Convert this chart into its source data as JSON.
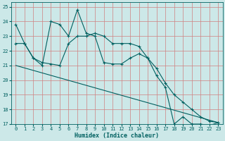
{
  "xlabel": "Humidex (Indice chaleur)",
  "background_color": "#cce8e8",
  "grid_color": "#d08080",
  "line_color": "#006060",
  "xlim": [
    -0.5,
    23.5
  ],
  "ylim": [
    17,
    25.3
  ],
  "yticks": [
    17,
    18,
    19,
    20,
    21,
    22,
    23,
    24,
    25
  ],
  "xticks": [
    0,
    1,
    2,
    3,
    4,
    5,
    6,
    7,
    8,
    9,
    10,
    11,
    12,
    13,
    14,
    15,
    16,
    17,
    18,
    19,
    20,
    21,
    22,
    23
  ],
  "series1_x": [
    0,
    1,
    2,
    3,
    4,
    5,
    6,
    7,
    8,
    9,
    10,
    11,
    12,
    13,
    14,
    15,
    16,
    17,
    18,
    19,
    20,
    21,
    22,
    23
  ],
  "series1_y": [
    23.8,
    22.5,
    21.5,
    21.0,
    24.0,
    23.8,
    23.0,
    24.8,
    23.2,
    23.0,
    21.2,
    21.1,
    21.1,
    21.5,
    21.8,
    21.5,
    20.3,
    19.5,
    17.0,
    17.5,
    17.0,
    17.0,
    16.9,
    17.1
  ],
  "series2_x": [
    0,
    1,
    2,
    3,
    4,
    5,
    6,
    7,
    8,
    9,
    10,
    11,
    12,
    13,
    14,
    15,
    16,
    17,
    18,
    19,
    20,
    21,
    22,
    23
  ],
  "series2_y": [
    22.5,
    22.5,
    21.5,
    21.2,
    21.1,
    21.0,
    22.5,
    23.0,
    23.0,
    23.2,
    23.0,
    22.5,
    22.5,
    22.5,
    22.3,
    21.5,
    20.8,
    19.8,
    19.0,
    18.5,
    18.0,
    17.5,
    17.2,
    17.1
  ],
  "series3_x": [
    0,
    23
  ],
  "series3_y": [
    21.0,
    17.1
  ]
}
